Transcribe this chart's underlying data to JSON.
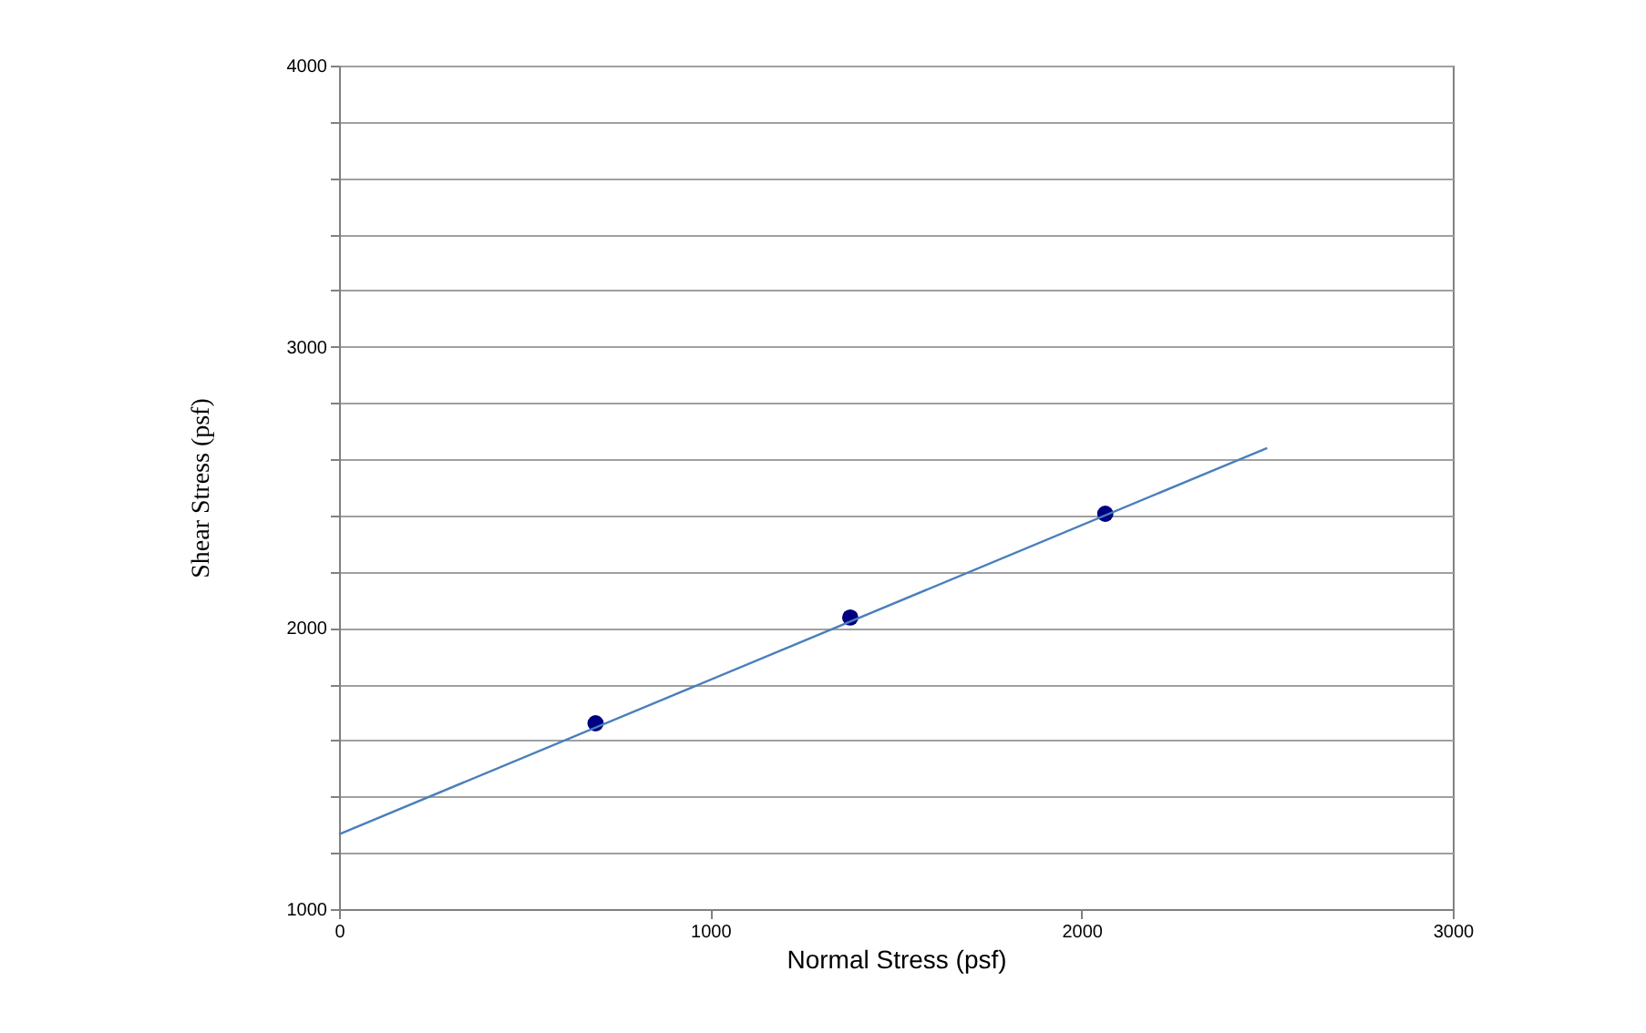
{
  "chart_data": {
    "type": "scatter",
    "xlabel": "Normal Stress (psf)",
    "ylabel": "Shear Stress (psf)",
    "series": [
      {
        "type": "scatter",
        "color": "#000080",
        "x": [
          691,
          1377,
          2064
        ],
        "values": [
          1661,
          2037,
          2406
        ],
        "marker": "circle"
      },
      {
        "type": "line",
        "color": "#4a7ebb",
        "x": [
          0,
          2500
        ],
        "values": [
          1266,
          2640
        ],
        "marker": "none"
      }
    ],
    "xlim": [
      0,
      3000
    ],
    "xticks": [
      0,
      1000,
      2000,
      3000
    ],
    "ylim": [
      1000,
      4000
    ],
    "yticks": [
      1000,
      {
        "value": 1200,
        "label": null
      },
      {
        "value": 1400,
        "label": null
      },
      {
        "value": 1600,
        "label": null
      },
      {
        "value": 1800,
        "label": null
      },
      2000,
      {
        "value": 2200,
        "label": null
      },
      {
        "value": 2400,
        "label": null
      },
      {
        "value": 2600,
        "label": null
      },
      {
        "value": 2800,
        "label": null
      },
      3000,
      {
        "value": 3200,
        "label": null
      },
      {
        "value": 3400,
        "label": null
      },
      {
        "value": 3600,
        "label": null
      },
      {
        "value": 3800,
        "label": null
      },
      4000
    ],
    "grid": "y"
  }
}
